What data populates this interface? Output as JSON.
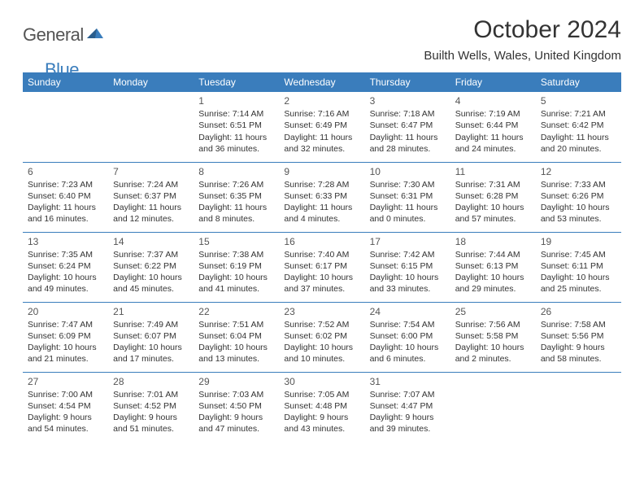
{
  "logo": {
    "general": "General",
    "blue": "Blue"
  },
  "title": "October 2024",
  "location": "Builth Wells, Wales, United Kingdom",
  "colors": {
    "header_bg": "#3a7dbc",
    "header_text": "#ffffff",
    "border": "#3a7dbc",
    "logo_gray": "#545454",
    "logo_blue": "#3a7dbc"
  },
  "weekdays": [
    "Sunday",
    "Monday",
    "Tuesday",
    "Wednesday",
    "Thursday",
    "Friday",
    "Saturday"
  ],
  "days": [
    {
      "n": "",
      "sr": "",
      "ss": "",
      "dl1": "",
      "dl2": ""
    },
    {
      "n": "",
      "sr": "",
      "ss": "",
      "dl1": "",
      "dl2": ""
    },
    {
      "n": "1",
      "sr": "Sunrise: 7:14 AM",
      "ss": "Sunset: 6:51 PM",
      "dl1": "Daylight: 11 hours",
      "dl2": "and 36 minutes."
    },
    {
      "n": "2",
      "sr": "Sunrise: 7:16 AM",
      "ss": "Sunset: 6:49 PM",
      "dl1": "Daylight: 11 hours",
      "dl2": "and 32 minutes."
    },
    {
      "n": "3",
      "sr": "Sunrise: 7:18 AM",
      "ss": "Sunset: 6:47 PM",
      "dl1": "Daylight: 11 hours",
      "dl2": "and 28 minutes."
    },
    {
      "n": "4",
      "sr": "Sunrise: 7:19 AM",
      "ss": "Sunset: 6:44 PM",
      "dl1": "Daylight: 11 hours",
      "dl2": "and 24 minutes."
    },
    {
      "n": "5",
      "sr": "Sunrise: 7:21 AM",
      "ss": "Sunset: 6:42 PM",
      "dl1": "Daylight: 11 hours",
      "dl2": "and 20 minutes."
    },
    {
      "n": "6",
      "sr": "Sunrise: 7:23 AM",
      "ss": "Sunset: 6:40 PM",
      "dl1": "Daylight: 11 hours",
      "dl2": "and 16 minutes."
    },
    {
      "n": "7",
      "sr": "Sunrise: 7:24 AM",
      "ss": "Sunset: 6:37 PM",
      "dl1": "Daylight: 11 hours",
      "dl2": "and 12 minutes."
    },
    {
      "n": "8",
      "sr": "Sunrise: 7:26 AM",
      "ss": "Sunset: 6:35 PM",
      "dl1": "Daylight: 11 hours",
      "dl2": "and 8 minutes."
    },
    {
      "n": "9",
      "sr": "Sunrise: 7:28 AM",
      "ss": "Sunset: 6:33 PM",
      "dl1": "Daylight: 11 hours",
      "dl2": "and 4 minutes."
    },
    {
      "n": "10",
      "sr": "Sunrise: 7:30 AM",
      "ss": "Sunset: 6:31 PM",
      "dl1": "Daylight: 11 hours",
      "dl2": "and 0 minutes."
    },
    {
      "n": "11",
      "sr": "Sunrise: 7:31 AM",
      "ss": "Sunset: 6:28 PM",
      "dl1": "Daylight: 10 hours",
      "dl2": "and 57 minutes."
    },
    {
      "n": "12",
      "sr": "Sunrise: 7:33 AM",
      "ss": "Sunset: 6:26 PM",
      "dl1": "Daylight: 10 hours",
      "dl2": "and 53 minutes."
    },
    {
      "n": "13",
      "sr": "Sunrise: 7:35 AM",
      "ss": "Sunset: 6:24 PM",
      "dl1": "Daylight: 10 hours",
      "dl2": "and 49 minutes."
    },
    {
      "n": "14",
      "sr": "Sunrise: 7:37 AM",
      "ss": "Sunset: 6:22 PM",
      "dl1": "Daylight: 10 hours",
      "dl2": "and 45 minutes."
    },
    {
      "n": "15",
      "sr": "Sunrise: 7:38 AM",
      "ss": "Sunset: 6:19 PM",
      "dl1": "Daylight: 10 hours",
      "dl2": "and 41 minutes."
    },
    {
      "n": "16",
      "sr": "Sunrise: 7:40 AM",
      "ss": "Sunset: 6:17 PM",
      "dl1": "Daylight: 10 hours",
      "dl2": "and 37 minutes."
    },
    {
      "n": "17",
      "sr": "Sunrise: 7:42 AM",
      "ss": "Sunset: 6:15 PM",
      "dl1": "Daylight: 10 hours",
      "dl2": "and 33 minutes."
    },
    {
      "n": "18",
      "sr": "Sunrise: 7:44 AM",
      "ss": "Sunset: 6:13 PM",
      "dl1": "Daylight: 10 hours",
      "dl2": "and 29 minutes."
    },
    {
      "n": "19",
      "sr": "Sunrise: 7:45 AM",
      "ss": "Sunset: 6:11 PM",
      "dl1": "Daylight: 10 hours",
      "dl2": "and 25 minutes."
    },
    {
      "n": "20",
      "sr": "Sunrise: 7:47 AM",
      "ss": "Sunset: 6:09 PM",
      "dl1": "Daylight: 10 hours",
      "dl2": "and 21 minutes."
    },
    {
      "n": "21",
      "sr": "Sunrise: 7:49 AM",
      "ss": "Sunset: 6:07 PM",
      "dl1": "Daylight: 10 hours",
      "dl2": "and 17 minutes."
    },
    {
      "n": "22",
      "sr": "Sunrise: 7:51 AM",
      "ss": "Sunset: 6:04 PM",
      "dl1": "Daylight: 10 hours",
      "dl2": "and 13 minutes."
    },
    {
      "n": "23",
      "sr": "Sunrise: 7:52 AM",
      "ss": "Sunset: 6:02 PM",
      "dl1": "Daylight: 10 hours",
      "dl2": "and 10 minutes."
    },
    {
      "n": "24",
      "sr": "Sunrise: 7:54 AM",
      "ss": "Sunset: 6:00 PM",
      "dl1": "Daylight: 10 hours",
      "dl2": "and 6 minutes."
    },
    {
      "n": "25",
      "sr": "Sunrise: 7:56 AM",
      "ss": "Sunset: 5:58 PM",
      "dl1": "Daylight: 10 hours",
      "dl2": "and 2 minutes."
    },
    {
      "n": "26",
      "sr": "Sunrise: 7:58 AM",
      "ss": "Sunset: 5:56 PM",
      "dl1": "Daylight: 9 hours",
      "dl2": "and 58 minutes."
    },
    {
      "n": "27",
      "sr": "Sunrise: 7:00 AM",
      "ss": "Sunset: 4:54 PM",
      "dl1": "Daylight: 9 hours",
      "dl2": "and 54 minutes."
    },
    {
      "n": "28",
      "sr": "Sunrise: 7:01 AM",
      "ss": "Sunset: 4:52 PM",
      "dl1": "Daylight: 9 hours",
      "dl2": "and 51 minutes."
    },
    {
      "n": "29",
      "sr": "Sunrise: 7:03 AM",
      "ss": "Sunset: 4:50 PM",
      "dl1": "Daylight: 9 hours",
      "dl2": "and 47 minutes."
    },
    {
      "n": "30",
      "sr": "Sunrise: 7:05 AM",
      "ss": "Sunset: 4:48 PM",
      "dl1": "Daylight: 9 hours",
      "dl2": "and 43 minutes."
    },
    {
      "n": "31",
      "sr": "Sunrise: 7:07 AM",
      "ss": "Sunset: 4:47 PM",
      "dl1": "Daylight: 9 hours",
      "dl2": "and 39 minutes."
    },
    {
      "n": "",
      "sr": "",
      "ss": "",
      "dl1": "",
      "dl2": ""
    },
    {
      "n": "",
      "sr": "",
      "ss": "",
      "dl1": "",
      "dl2": ""
    }
  ]
}
